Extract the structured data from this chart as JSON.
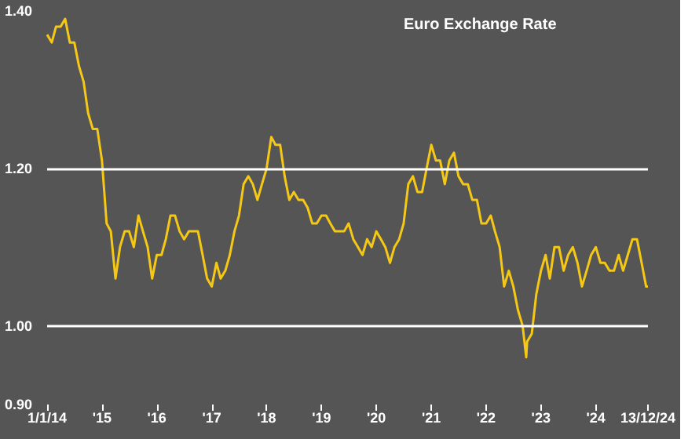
{
  "chart_data": {
    "type": "line",
    "title": "Euro Exchange Rate",
    "x": [
      "2014-01-01",
      "2014-02-01",
      "2014-03-01",
      "2014-04-01",
      "2014-05-01",
      "2014-06-01",
      "2014-07-01",
      "2014-08-01",
      "2014-09-01",
      "2014-10-01",
      "2014-11-01",
      "2014-12-01",
      "2015-01-01",
      "2015-02-01",
      "2015-03-01",
      "2015-04-01",
      "2015-05-01",
      "2015-06-01",
      "2015-07-01",
      "2015-08-01",
      "2015-09-01",
      "2015-10-01",
      "2015-11-01",
      "2015-12-01",
      "2016-01-01",
      "2016-02-01",
      "2016-03-01",
      "2016-04-01",
      "2016-05-01",
      "2016-06-01",
      "2016-07-01",
      "2016-08-01",
      "2016-09-01",
      "2016-10-01",
      "2016-11-01",
      "2016-12-01",
      "2017-01-01",
      "2017-02-01",
      "2017-03-01",
      "2017-04-01",
      "2017-05-01",
      "2017-06-01",
      "2017-07-01",
      "2017-08-01",
      "2017-09-01",
      "2017-10-01",
      "2017-11-01",
      "2017-12-01",
      "2018-01-01",
      "2018-02-01",
      "2018-03-01",
      "2018-04-01",
      "2018-05-01",
      "2018-06-01",
      "2018-07-01",
      "2018-08-01",
      "2018-09-01",
      "2018-10-01",
      "2018-11-01",
      "2018-12-01",
      "2019-01-01",
      "2019-02-01",
      "2019-03-01",
      "2019-04-01",
      "2019-05-01",
      "2019-06-01",
      "2019-07-01",
      "2019-08-01",
      "2019-09-01",
      "2019-10-01",
      "2019-11-01",
      "2019-12-01",
      "2020-01-01",
      "2020-02-01",
      "2020-03-01",
      "2020-04-01",
      "2020-05-01",
      "2020-06-01",
      "2020-07-01",
      "2020-08-01",
      "2020-09-01",
      "2020-10-01",
      "2020-11-01",
      "2020-12-01",
      "2021-01-01",
      "2021-02-01",
      "2021-03-01",
      "2021-04-01",
      "2021-05-01",
      "2021-06-01",
      "2021-07-01",
      "2021-08-01",
      "2021-09-01",
      "2021-10-01",
      "2021-11-01",
      "2021-12-01",
      "2022-01-01",
      "2022-02-01",
      "2022-03-01",
      "2022-04-01",
      "2022-05-01",
      "2022-06-01",
      "2022-07-01",
      "2022-08-01",
      "2022-09-01",
      "2022-09-25",
      "2022-10-01",
      "2022-11-01",
      "2022-12-01",
      "2023-01-01",
      "2023-02-01",
      "2023-03-01",
      "2023-04-01",
      "2023-05-01",
      "2023-06-01",
      "2023-07-01",
      "2023-08-01",
      "2023-09-01",
      "2023-10-01",
      "2023-11-01",
      "2023-12-01",
      "2024-01-01",
      "2024-02-01",
      "2024-03-01",
      "2024-04-01",
      "2024-05-01",
      "2024-06-01",
      "2024-07-01",
      "2024-08-01",
      "2024-09-01",
      "2024-10-01",
      "2024-11-01",
      "2024-12-01",
      "2024-12-13"
    ],
    "series": [
      {
        "color": "#f5c816",
        "values": [
          1.37,
          1.36,
          1.38,
          1.38,
          1.39,
          1.36,
          1.36,
          1.33,
          1.31,
          1.27,
          1.25,
          1.25,
          1.21,
          1.13,
          1.12,
          1.06,
          1.1,
          1.12,
          1.12,
          1.1,
          1.14,
          1.12,
          1.1,
          1.06,
          1.09,
          1.09,
          1.11,
          1.14,
          1.14,
          1.12,
          1.11,
          1.12,
          1.12,
          1.12,
          1.09,
          1.06,
          1.05,
          1.08,
          1.06,
          1.07,
          1.09,
          1.12,
          1.14,
          1.18,
          1.19,
          1.18,
          1.16,
          1.18,
          1.2,
          1.24,
          1.23,
          1.23,
          1.19,
          1.16,
          1.17,
          1.16,
          1.16,
          1.15,
          1.13,
          1.13,
          1.14,
          1.14,
          1.13,
          1.12,
          1.12,
          1.12,
          1.13,
          1.11,
          1.1,
          1.09,
          1.11,
          1.1,
          1.12,
          1.11,
          1.1,
          1.08,
          1.1,
          1.11,
          1.13,
          1.18,
          1.19,
          1.17,
          1.17,
          1.2,
          1.23,
          1.21,
          1.21,
          1.18,
          1.21,
          1.22,
          1.19,
          1.18,
          1.18,
          1.16,
          1.16,
          1.13,
          1.13,
          1.14,
          1.12,
          1.1,
          1.05,
          1.07,
          1.05,
          1.02,
          1.0,
          0.96,
          0.98,
          0.99,
          1.04,
          1.07,
          1.09,
          1.06,
          1.1,
          1.1,
          1.07,
          1.09,
          1.1,
          1.08,
          1.05,
          1.07,
          1.09,
          1.1,
          1.08,
          1.08,
          1.07,
          1.07,
          1.09,
          1.07,
          1.09,
          1.11,
          1.11,
          1.08,
          1.05,
          1.05
        ]
      }
    ],
    "xlim": [
      "2014-01-01",
      "2024-12-13"
    ],
    "xticks": [
      {
        "value": "2014-01-01",
        "label": "1/1/14"
      },
      {
        "value": "2015-01-01",
        "label": "'15"
      },
      {
        "value": "2016-01-01",
        "label": "'16"
      },
      {
        "value": "2017-01-01",
        "label": "'17"
      },
      {
        "value": "2018-01-01",
        "label": "'18"
      },
      {
        "value": "2019-01-01",
        "label": "'19"
      },
      {
        "value": "2020-01-01",
        "label": "'20"
      },
      {
        "value": "2021-01-01",
        "label": "'21"
      },
      {
        "value": "2022-01-01",
        "label": "'22"
      },
      {
        "value": "2023-01-01",
        "label": "'23"
      },
      {
        "value": "2024-01-01",
        "label": "'24"
      },
      {
        "value": "2024-12-13",
        "label": "13/12/24"
      }
    ],
    "ylim": [
      0.9,
      1.4
    ],
    "yticks": [
      {
        "value": 0.9,
        "label": "0.90"
      },
      {
        "value": 1.0,
        "label": "1.00"
      },
      {
        "value": 1.2,
        "label": "1.20"
      },
      {
        "value": 1.4,
        "label": "1.40"
      }
    ],
    "ref_lines": [
      {
        "axis": "y",
        "value": 1.2,
        "color": "#ffffff"
      },
      {
        "axis": "y",
        "value": 1.0,
        "color": "#ffffff"
      }
    ],
    "marker": "none",
    "line_style": "solid"
  }
}
